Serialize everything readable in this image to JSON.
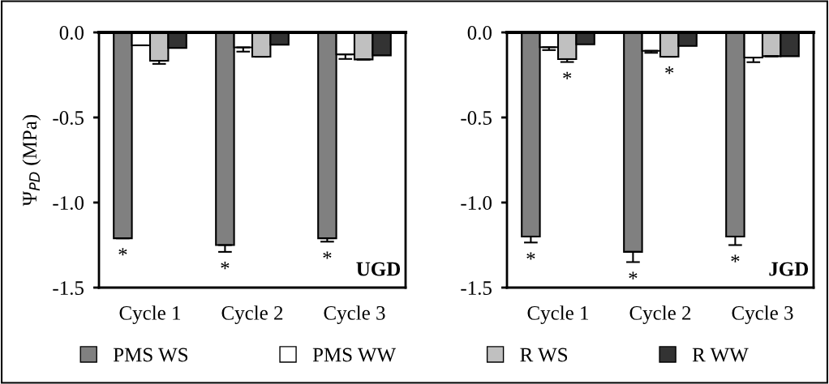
{
  "chart_data": [
    {
      "type": "bar",
      "categories": [
        "Cycle 1",
        "Cycle 2",
        "Cycle 3"
      ],
      "ylabel": "Ψ$_{PD}$ (MPa)",
      "ylim": [
        -1.5,
        0
      ],
      "yticks": [
        {
          "value": -1.5,
          "label": "-1.5"
        },
        {
          "value": -1.0,
          "label": "-1.0"
        },
        {
          "value": -0.5,
          "label": "-0.5"
        },
        {
          "value": 0,
          "label": "0.0"
        }
      ],
      "grid": false,
      "legend": "bottom",
      "series": [
        {
          "name": "PMS WS",
          "color": "#808080",
          "values": [
            -1.21,
            -1.25,
            -1.21
          ],
          "errors": [
            null,
            [
              -1.29,
              -1.25
            ],
            [
              -1.23,
              -1.21
            ]
          ],
          "value_labels": [
            "*",
            "*",
            "*"
          ]
        },
        {
          "name": "PMS WW",
          "color": "#ffffff",
          "values": [
            -0.076,
            -0.088,
            -0.129
          ],
          "errors": [
            null,
            [
              -0.113,
              -0.088
            ],
            [
              -0.156,
              -0.129
            ]
          ]
        },
        {
          "name": "R WS",
          "color": "#c0c0c0",
          "values": [
            -0.167,
            -0.143,
            -0.159
          ],
          "errors": [
            [
              -0.185,
              -0.167
            ],
            null,
            null
          ]
        },
        {
          "name": "R WW",
          "color": "#333333",
          "values": [
            -0.092,
            -0.072,
            -0.135
          ],
          "errors": [
            null,
            null,
            null
          ]
        }
      ],
      "annotations": [
        "UGD"
      ]
    },
    {
      "type": "bar",
      "categories": [
        "Cycle 1",
        "Cycle 2",
        "Cycle 3"
      ],
      "ylim": [
        -1.5,
        0
      ],
      "yticks": [
        {
          "value": -1.5,
          "label": "-1.5"
        },
        {
          "value": -1.0,
          "label": "-1.0"
        },
        {
          "value": -0.5,
          "label": "-0.5"
        },
        {
          "value": 0,
          "label": "0.0"
        }
      ],
      "grid": false,
      "series": [
        {
          "color": "#808080",
          "values": [
            -1.2,
            -1.29,
            -1.2
          ],
          "errors": [
            [
              -1.235,
              -1.2
            ],
            [
              -1.35,
              -1.29
            ],
            [
              -1.25,
              -1.2
            ]
          ],
          "value_labels": [
            "*",
            "*",
            "*"
          ]
        },
        {
          "color": "#ffffff",
          "values": [
            -0.087,
            -0.108,
            -0.148
          ],
          "errors": [
            [
              -0.104,
              -0.087
            ],
            [
              -0.12,
              -0.108
            ],
            [
              -0.175,
              -0.148
            ]
          ]
        },
        {
          "color": "#c0c0c0",
          "values": [
            -0.157,
            -0.143,
            -0.14
          ],
          "errors": [
            [
              -0.174,
              -0.157
            ],
            null,
            null
          ],
          "value_labels": [
            "*",
            "*",
            null
          ]
        },
        {
          "color": "#333333",
          "values": [
            -0.07,
            -0.08,
            -0.14
          ],
          "errors": [
            null,
            null,
            null
          ]
        }
      ],
      "annotations": [
        "JGD"
      ]
    }
  ]
}
